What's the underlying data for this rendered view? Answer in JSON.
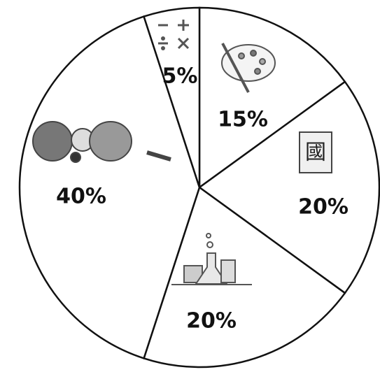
{
  "chart_data": {
    "type": "pie",
    "values": [
      15,
      20,
      20,
      40,
      5
    ],
    "value_labels": [
      "15%",
      "20%",
      "20%",
      "40%",
      "5%"
    ],
    "color": "#ffffff",
    "annotations": [
      "國"
    ]
  }
}
